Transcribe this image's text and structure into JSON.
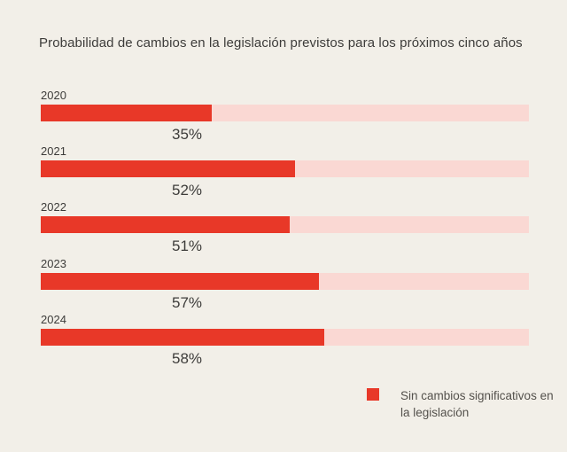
{
  "theme": {
    "background": "#f2efe8",
    "accent_red": "#e83828",
    "track_pink": "#fad8d3",
    "text_dark": "#3d3c3a",
    "legend_text": "#54514c"
  },
  "chart_data": {
    "type": "bar",
    "orientation": "horizontal",
    "title": "Probabilidad de cambios en la legislación previstos para los próximos cinco años",
    "categories": [
      "2020",
      "2021",
      "2022",
      "2023",
      "2024"
    ],
    "values": [
      35,
      52,
      51,
      57,
      58
    ],
    "value_suffix": "%",
    "xlim": [
      0,
      100
    ],
    "grid": false,
    "legend_position": "bottom-right",
    "legend": [
      {
        "label": "Sin cambios significativos en la legislación",
        "color": "#e83828"
      }
    ]
  }
}
